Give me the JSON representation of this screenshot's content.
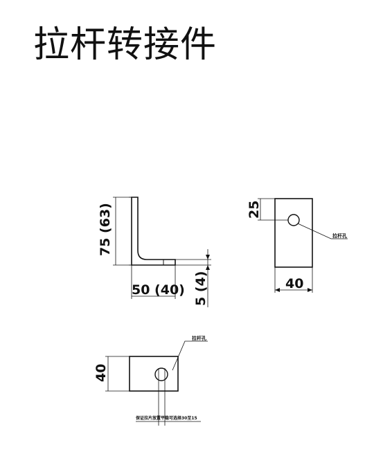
{
  "title": "拉杆转接件",
  "side_view": {
    "height_label": "75 (63)",
    "width_label": "50 (40)",
    "thickness_label": "5 (4)"
  },
  "front_view": {
    "offset_label": "25",
    "width_label": "40",
    "hole_note": "拉杆孔"
  },
  "top_view": {
    "height_label": "40",
    "hole_note": "拉杆孔",
    "bottom_note": "保证拉片放置平稳可选择30至15"
  },
  "colors": {
    "line": "#111111",
    "background": "#ffffff"
  }
}
